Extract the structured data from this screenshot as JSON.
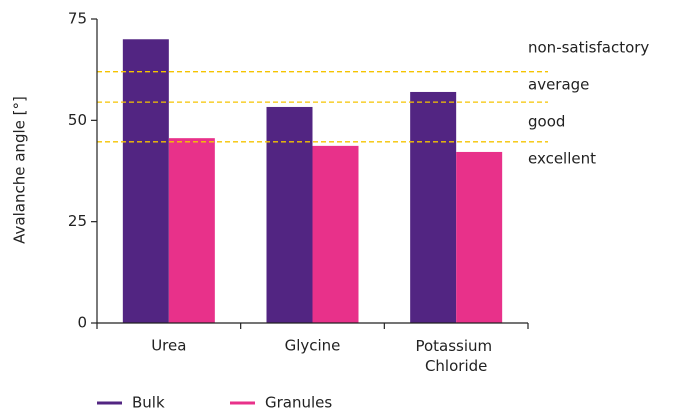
{
  "chart_data": {
    "type": "bar",
    "y_label": "Avalanche angle [°]",
    "categories": [
      "Urea",
      "Glycine",
      "Potassium Chloride"
    ],
    "series": [
      {
        "name": "Bulk",
        "color": "#522582",
        "values": [
          70,
          53.3,
          57
        ]
      },
      {
        "name": "Granules",
        "color": "#e8318a",
        "values": [
          45.6,
          43.7,
          42.2
        ]
      }
    ],
    "ylim": [
      0,
      75
    ],
    "yticks": [
      0,
      25,
      50,
      75
    ],
    "reference_lines": [
      62,
      54.5,
      44.7
    ],
    "reference_color": "#f5c400",
    "zone_labels": [
      "non-satisfactory",
      "average",
      "good",
      "excellent"
    ],
    "legend": "bottom"
  }
}
